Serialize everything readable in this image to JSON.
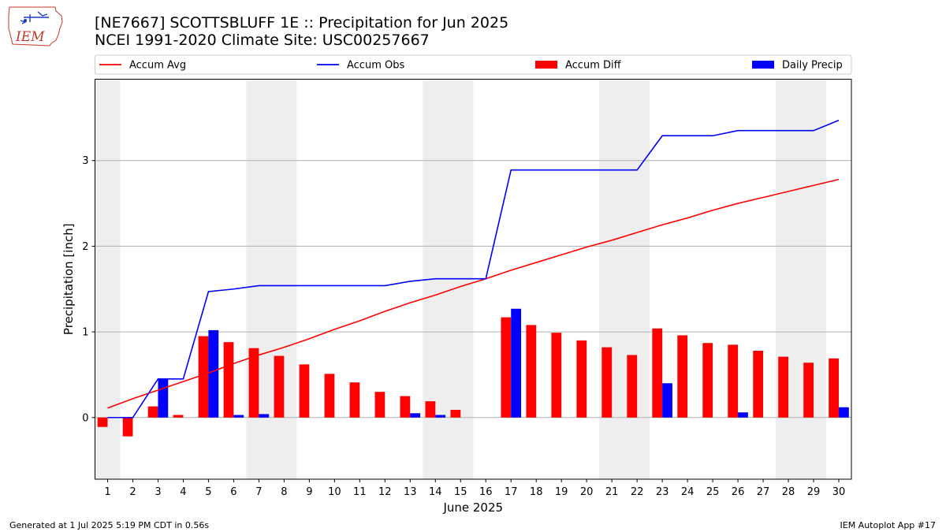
{
  "header": {
    "title_line1": "[NE7667] SCOTTSBLUFF 1E :: Precipitation for Jun 2025",
    "title_line2": "NCEI 1991-2020 Climate Site: USC00257667"
  },
  "logo": {
    "text": "IEM"
  },
  "footer": {
    "left": "Generated at 1 Jul 2025 5:19 PM CDT in 0.56s",
    "right": "IEM Autoplot App #17"
  },
  "colors": {
    "avg": "#ff0000",
    "obs": "#0000ff",
    "diff": "#ff0000",
    "daily": "#0000ff",
    "weekend_shade": "#eeeeee",
    "grid": "#b0b0b0"
  },
  "chart_data": {
    "type": "bar",
    "xlabel": "June 2025",
    "ylabel": "Precipitation [inch]",
    "ylim": [
      -0.72,
      3.95
    ],
    "yticks": [
      0,
      1,
      2,
      3
    ],
    "xlim": [
      0.5,
      30.5
    ],
    "grid": "horizontal",
    "legend_position": "top",
    "days": [
      1,
      2,
      3,
      4,
      5,
      6,
      7,
      8,
      9,
      10,
      11,
      12,
      13,
      14,
      15,
      16,
      17,
      18,
      19,
      20,
      21,
      22,
      23,
      24,
      25,
      26,
      27,
      28,
      29,
      30
    ],
    "weekend_days": [
      1,
      7,
      8,
      14,
      15,
      21,
      22,
      28,
      29
    ],
    "series": [
      {
        "name": "Accum Avg",
        "kind": "line",
        "values": [
          0.11,
          0.22,
          0.32,
          0.42,
          0.52,
          0.63,
          0.73,
          0.82,
          0.92,
          1.03,
          1.13,
          1.24,
          1.34,
          1.43,
          1.53,
          1.62,
          1.72,
          1.81,
          1.9,
          1.99,
          2.07,
          2.16,
          2.25,
          2.33,
          2.42,
          2.5,
          2.57,
          2.64,
          2.71,
          2.78
        ]
      },
      {
        "name": "Accum Obs",
        "kind": "line",
        "values": [
          0.0,
          0.0,
          0.45,
          0.45,
          1.47,
          1.5,
          1.54,
          1.54,
          1.54,
          1.54,
          1.54,
          1.54,
          1.59,
          1.62,
          1.62,
          1.62,
          2.89,
          2.89,
          2.89,
          2.89,
          2.89,
          2.89,
          3.29,
          3.29,
          3.29,
          3.35,
          3.35,
          3.35,
          3.35,
          3.47
        ]
      },
      {
        "name": "Accum Diff",
        "kind": "bar",
        "values": [
          -0.11,
          -0.22,
          0.13,
          0.03,
          0.95,
          0.88,
          0.81,
          0.72,
          0.62,
          0.51,
          0.41,
          0.3,
          0.25,
          0.19,
          0.09,
          0.0,
          1.17,
          1.08,
          0.99,
          0.9,
          0.82,
          0.73,
          1.04,
          0.96,
          0.87,
          0.85,
          0.78,
          0.71,
          0.64,
          0.69
        ]
      },
      {
        "name": "Daily Precip",
        "kind": "bar",
        "values": [
          0.0,
          0.0,
          0.45,
          0.0,
          1.02,
          0.03,
          0.04,
          0.0,
          0.0,
          0.0,
          0.0,
          0.0,
          0.05,
          0.03,
          0.0,
          0.0,
          1.27,
          0.0,
          0.0,
          0.0,
          0.0,
          0.0,
          0.4,
          0.0,
          0.0,
          0.06,
          0.0,
          0.0,
          0.0,
          0.12
        ]
      }
    ]
  }
}
